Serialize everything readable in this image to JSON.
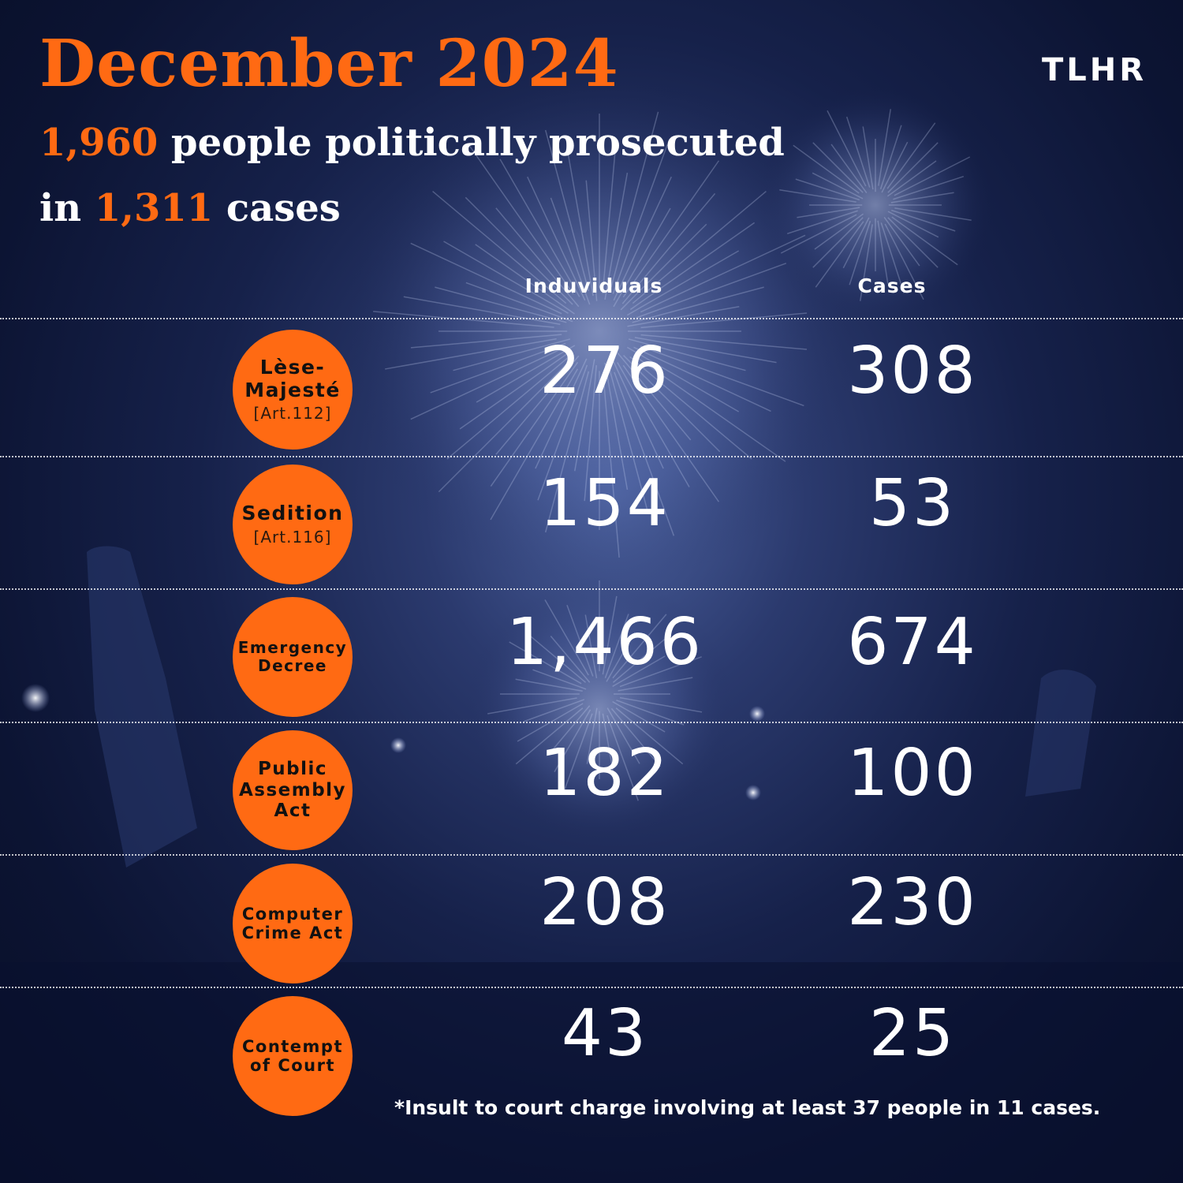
{
  "header": {
    "title": "December 2024",
    "line1_number": "1,960",
    "line1_text": " people politically prosecuted",
    "line2_prefix": "in ",
    "line2_number": "1,311",
    "line2_text": " cases",
    "logo_text": "TLHR"
  },
  "columns": {
    "individuals": "Induviduals",
    "cases": "Cases"
  },
  "rows": [
    {
      "name": "Lèse-\nMajesté",
      "article": "[Art.112]",
      "individuals": "276",
      "cases": "308"
    },
    {
      "name": "Sedition",
      "article": "[Art.116]",
      "individuals": "154",
      "cases": "53"
    },
    {
      "name": "Emergency\nDecree",
      "article": "",
      "individuals": "1,466",
      "cases": "674"
    },
    {
      "name": "Public\nAssembly\nAct",
      "article": "",
      "individuals": "182",
      "cases": "100"
    },
    {
      "name": "Computer\nCrime Act",
      "article": "",
      "individuals": "208",
      "cases": "230"
    },
    {
      "name": "Contempt\nof Court",
      "article": "",
      "individuals": "43",
      "cases": "25"
    }
  ],
  "footnote": "*Insult to court charge involving at least 37 people in 11 cases.",
  "colors": {
    "accent": "#ff6a13",
    "background": "#0c1433",
    "text": "#ffffff"
  }
}
